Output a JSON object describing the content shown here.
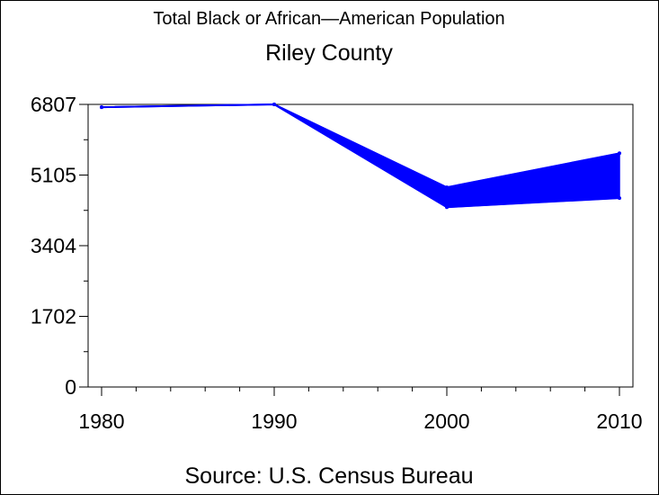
{
  "chart_data": {
    "type": "area",
    "title": "Total Black or African—American Population",
    "subtitle": "Riley County",
    "footnote": "Source: U.S. Census Bureau",
    "x": [
      1980,
      1990,
      2000,
      2010
    ],
    "x_tick_labels": [
      "1980",
      "1990",
      "2000",
      "2010"
    ],
    "xlim": [
      1980,
      2010
    ],
    "ylim": [
      0,
      6807
    ],
    "y_ticks": [
      0,
      1702,
      3404,
      5105,
      6807
    ],
    "y_tick_labels": [
      "0",
      "1702",
      "3404",
      "5105",
      "6807"
    ],
    "series": [
      {
        "values_upper": [
          6740,
          6807,
          4810,
          5630
        ],
        "values_lower": [
          6740,
          6807,
          4330,
          4550
        ],
        "color": "#0000ff"
      }
    ],
    "grid": false,
    "legend": "none"
  }
}
